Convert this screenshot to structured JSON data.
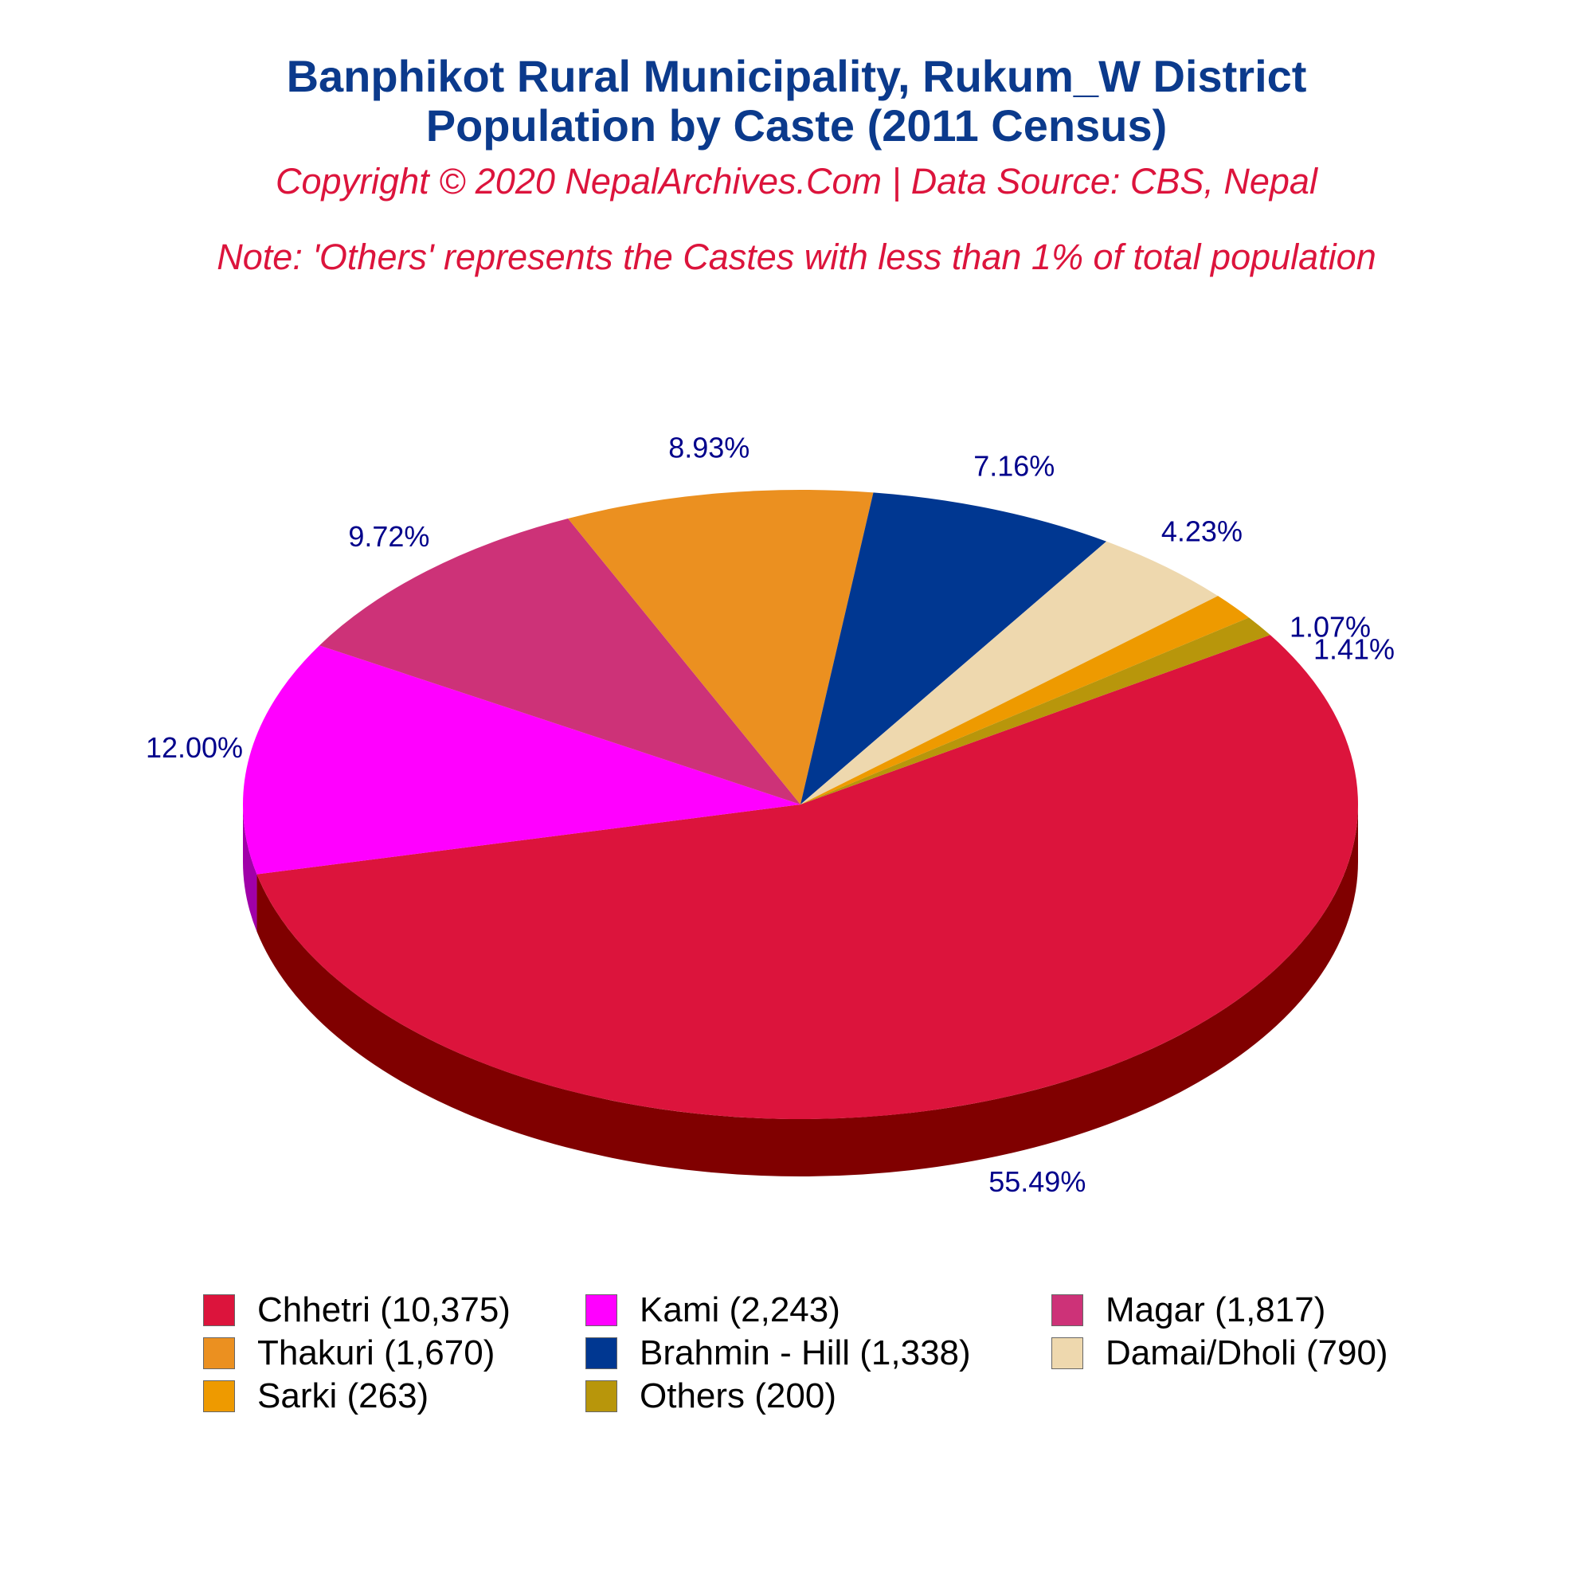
{
  "header": {
    "title_line1": "Banphikot Rural Municipality, Rukum_W District",
    "title_line2": "Population by Caste (2011 Census)",
    "copyright": "Copyright © 2020 NepalArchives.Com | Data Source: CBS, Nepal",
    "note": "Note: 'Others' represents the Castes with less than 1% of total population"
  },
  "chart_data": {
    "type": "pie",
    "title": "Banphikot Rural Municipality, Rukum_W District Population by Caste (2011 Census)",
    "style": "3d",
    "legend_position": "bottom",
    "slices": [
      {
        "label": "Chhetri",
        "value": 10375,
        "percent_label": "55.49%",
        "legend": "Chhetri (10,375)",
        "color": "#dc143c",
        "side_color": "#800000"
      },
      {
        "label": "Kami",
        "value": 2243,
        "percent_label": "12.00%",
        "legend": "Kami (2,243)",
        "color": "#ff00ff",
        "side_color": "#a000a8"
      },
      {
        "label": "Magar",
        "value": 1817,
        "percent_label": "9.72%",
        "legend": "Magar (1,817)",
        "color": "#cd3278",
        "side_color": "#6b0020"
      },
      {
        "label": "Thakuri",
        "value": 1670,
        "percent_label": "8.93%",
        "legend": "Thakuri (1,670)",
        "color": "#eb9020",
        "side_color": "#8b3500"
      },
      {
        "label": "Brahmin - Hill",
        "value": 1338,
        "percent_label": "7.16%",
        "legend": "Brahmin - Hill (1,338)",
        "color": "#003791",
        "side_color": "#00003d"
      },
      {
        "label": "Damai/Dholi",
        "value": 790,
        "percent_label": "4.23%",
        "legend": "Damai/Dholi (790)",
        "color": "#eed8ae",
        "side_color": "#8b7a5a"
      },
      {
        "label": "Sarki",
        "value": 263,
        "percent_label": "1.41%",
        "legend": "Sarki (263)",
        "color": "#ee9a00",
        "side_color": "#8b5a00"
      },
      {
        "label": "Others",
        "value": 200,
        "percent_label": "1.07%",
        "legend": "Others (200)",
        "color": "#b8960b",
        "side_color": "#6b5500"
      }
    ],
    "label_color": "#00008b"
  }
}
